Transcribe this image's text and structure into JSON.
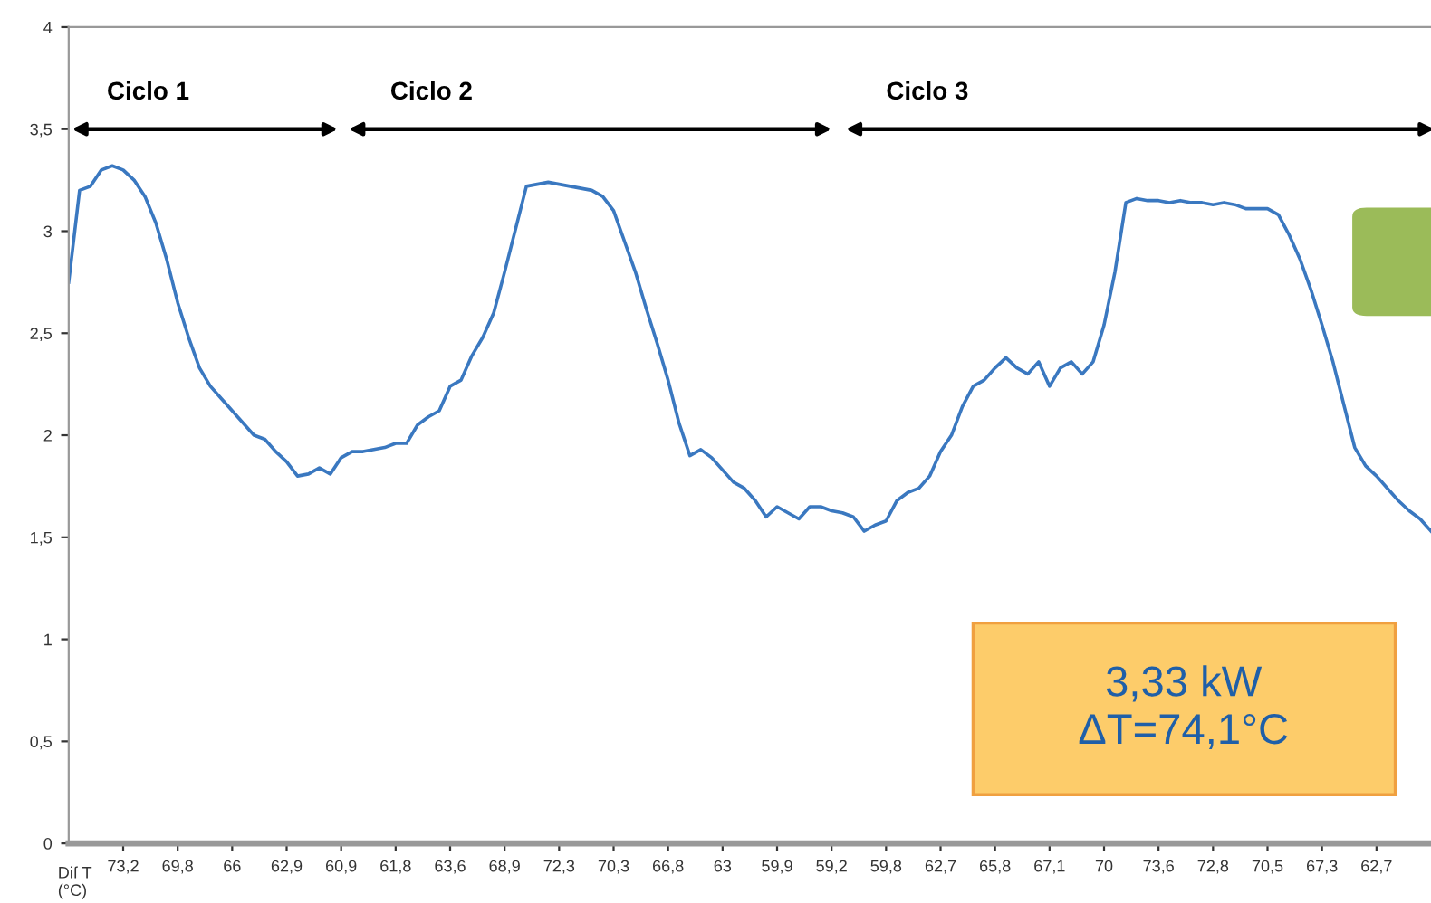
{
  "chart_data": {
    "type": "line",
    "xlabel": "Dif T\n(°C)",
    "categories": [
      null,
      null,
      null,
      null,
      null,
      "73,2",
      null,
      null,
      null,
      null,
      "69,8",
      null,
      null,
      null,
      null,
      "66",
      null,
      null,
      null,
      null,
      "62,9",
      null,
      null,
      null,
      null,
      "60,9",
      null,
      null,
      null,
      null,
      "61,8",
      null,
      null,
      null,
      null,
      "63,6",
      null,
      null,
      null,
      null,
      "68,9",
      null,
      null,
      null,
      null,
      "72,3",
      null,
      null,
      null,
      null,
      "70,3",
      null,
      null,
      null,
      null,
      "66,8",
      null,
      null,
      null,
      null,
      "63",
      null,
      null,
      null,
      null,
      "59,9",
      null,
      null,
      null,
      null,
      "59,2",
      null,
      null,
      null,
      null,
      "59,8",
      null,
      null,
      null,
      null,
      "62,7",
      null,
      null,
      null,
      null,
      "65,8",
      null,
      null,
      null,
      null,
      "67,1",
      null,
      null,
      null,
      null,
      "70",
      null,
      null,
      null,
      null,
      "73,6",
      null,
      null,
      null,
      null,
      "72,8",
      null,
      null,
      null,
      null,
      "70,5",
      null,
      null,
      null,
      null,
      "67,3",
      null,
      null,
      null,
      null,
      "62,7",
      null,
      null,
      null,
      null,
      null
    ],
    "series": [
      {
        "color": "#3a78c0",
        "values": [
          2.75,
          3.2,
          3.22,
          3.3,
          3.32,
          3.3,
          3.25,
          3.17,
          3.04,
          2.86,
          2.65,
          2.48,
          2.33,
          2.24,
          2.18,
          2.12,
          2.06,
          2.0,
          1.98,
          1.92,
          1.87,
          1.8,
          1.81,
          1.84,
          1.81,
          1.89,
          1.92,
          1.92,
          1.93,
          1.94,
          1.96,
          1.96,
          2.05,
          2.09,
          2.12,
          2.24,
          2.27,
          2.39,
          2.48,
          2.6,
          2.8,
          3.01,
          3.22,
          3.23,
          3.24,
          3.23,
          3.22,
          3.21,
          3.2,
          3.17,
          3.1,
          2.95,
          2.8,
          2.62,
          2.45,
          2.27,
          2.06,
          1.9,
          1.93,
          1.89,
          1.83,
          1.77,
          1.74,
          1.68,
          1.6,
          1.65,
          1.62,
          1.59,
          1.65,
          1.65,
          1.63,
          1.62,
          1.6,
          1.53,
          1.56,
          1.58,
          1.68,
          1.72,
          1.74,
          1.8,
          1.92,
          2.0,
          2.14,
          2.24,
          2.27,
          2.33,
          2.38,
          2.33,
          2.3,
          2.36,
          2.24,
          2.33,
          2.36,
          2.3,
          2.36,
          2.54,
          2.8,
          3.14,
          3.16,
          3.15,
          3.15,
          3.14,
          3.15,
          3.14,
          3.14,
          3.13,
          3.14,
          3.13,
          3.11,
          3.11,
          3.11,
          3.08,
          2.98,
          2.86,
          2.71,
          2.54,
          2.36,
          2.15,
          1.94,
          1.85,
          1.8,
          1.74,
          1.68,
          1.63,
          1.59,
          1.53
        ]
      }
    ],
    "ylim": [
      0,
      4
    ],
    "yticks": [
      0,
      {
        "value": 0.5,
        "label": "0,5"
      },
      1,
      {
        "value": 1.5,
        "label": "1,5"
      },
      2,
      {
        "value": 2.5,
        "label": "2,5"
      },
      3,
      {
        "value": 3.5,
        "label": "3,5"
      },
      4
    ],
    "annotations": [
      "Ciclo 1",
      "Ciclo 2",
      "Ciclo 3",
      "3,33 kW\nΔT=74,1°C"
    ],
    "grid": false,
    "legend": false,
    "marker": "none",
    "line_style": "solid"
  }
}
